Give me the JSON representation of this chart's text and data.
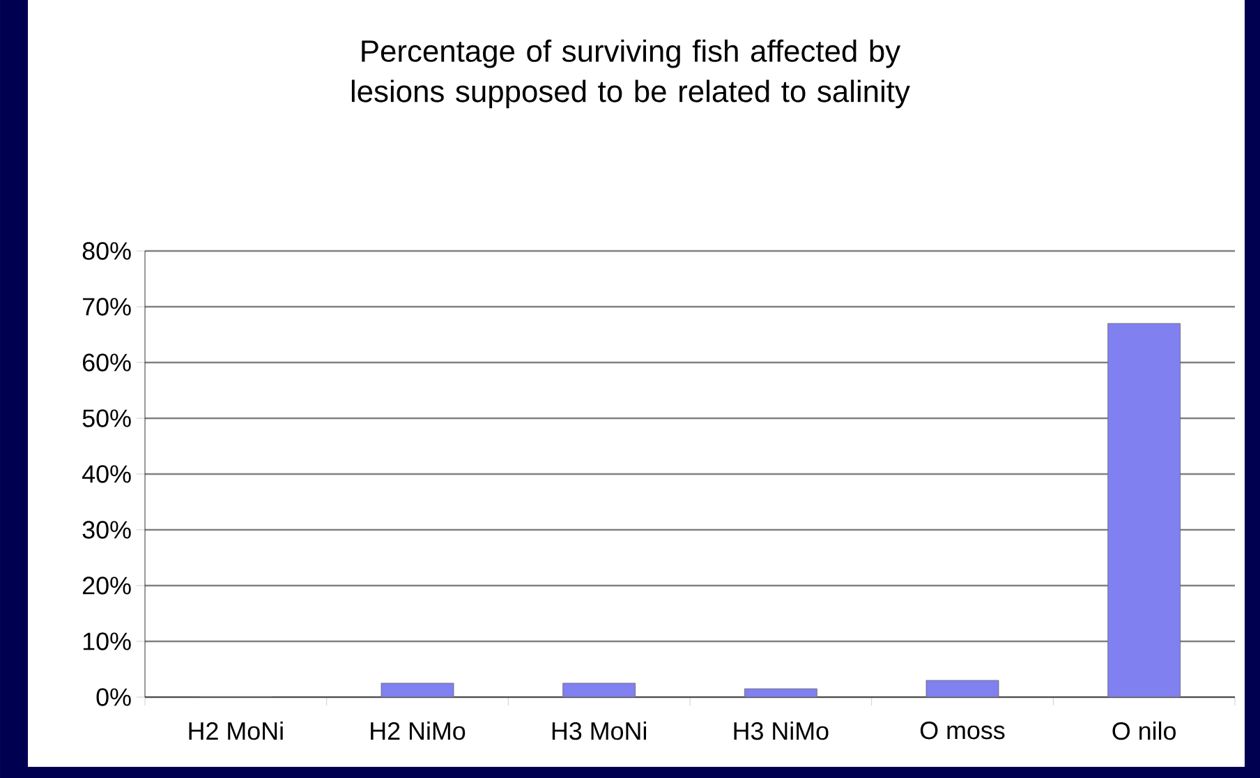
{
  "chart_data": {
    "type": "bar",
    "title": "Percentage of surviving fish affected by lesions supposed to be related to salinity",
    "categories": [
      "H2 MoNi",
      "H2 NiMo",
      "H3 MoNi",
      "H3 NiMo",
      "O moss",
      "O nilo"
    ],
    "values": [
      0,
      2.5,
      2.5,
      1.5,
      3,
      67
    ],
    "color": "#8080f0",
    "ylim": [
      0,
      80
    ],
    "yticks": [
      {
        "value": 0,
        "label": "0%"
      },
      {
        "value": 10,
        "label": "10%"
      },
      {
        "value": 20,
        "label": "20%"
      },
      {
        "value": 30,
        "label": "30%"
      },
      {
        "value": 40,
        "label": "40%"
      },
      {
        "value": 50,
        "label": "50%"
      },
      {
        "value": 60,
        "label": "60%"
      },
      {
        "value": 70,
        "label": "70%"
      },
      {
        "value": 80,
        "label": "80%"
      }
    ],
    "grid": "y"
  }
}
